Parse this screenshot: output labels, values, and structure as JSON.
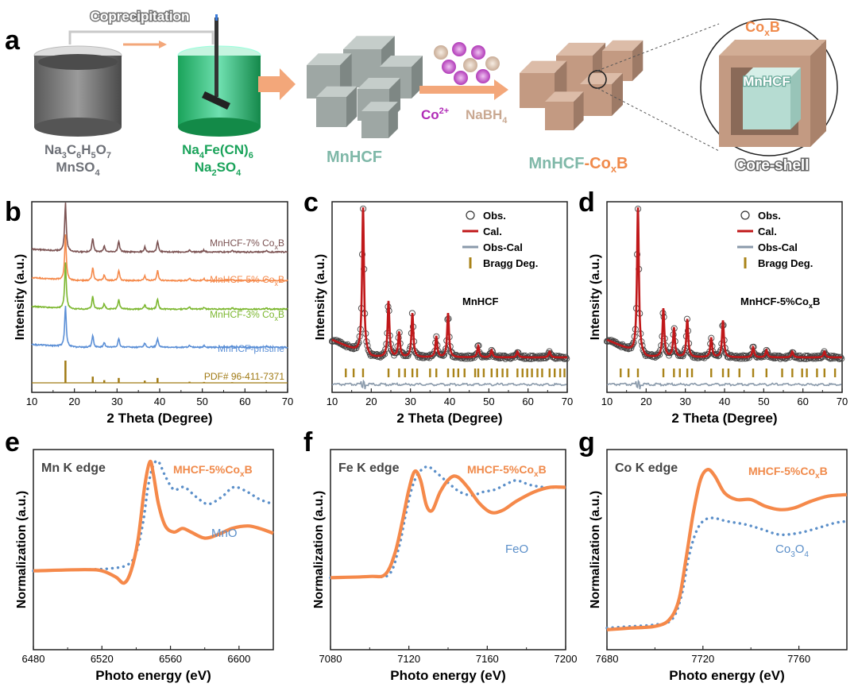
{
  "panel_labels": {
    "a": "a",
    "b": "b",
    "c": "c",
    "d": "d",
    "e": "e",
    "f": "f",
    "g": "g"
  },
  "schematic": {
    "coprecipitation": "Coprecipitation",
    "beaker1_l1_pre": "Na",
    "beaker1_l1_s1": "3",
    "beaker1_l1_m1": "C",
    "beaker1_l1_s2": "6",
    "beaker1_l1_m2": "H",
    "beaker1_l1_s3": "5",
    "beaker1_l1_m3": "O",
    "beaker1_l1_s4": "7",
    "beaker1_l2_pre": "MnSO",
    "beaker1_l2_sub": "4",
    "beaker2_l1_pre": "Na",
    "beaker2_l1_s1": "4",
    "beaker2_l1_m1": "Fe(CN)",
    "beaker2_l1_s2": "6",
    "beaker2_l2_pre": "Na",
    "beaker2_l2_s1": "2",
    "beaker2_l2_m1": "SO",
    "beaker2_l2_s2": "4",
    "mnhcf": "MnHCF",
    "co_ion": "Co",
    "co_charge": "2+",
    "nabh_pre": "NaBH",
    "nabh_sub": "4",
    "product_base": "MnHCF",
    "product_dash": "-",
    "product_co": "Co",
    "product_x": "x",
    "product_b": "B",
    "coxb_co": "Co",
    "coxb_x": "x",
    "coxb_b": "B",
    "core_label": "MnHCF",
    "core_shell": "Core-shell"
  },
  "colors": {
    "grey_text": "#6d7077",
    "green": "#1aa35a",
    "teal": "#7fb8a8",
    "orange": "#f08a4b",
    "brown": "#7b5252",
    "orange_line": "#f5894a",
    "blue_dot": "#5b8fc9",
    "red_line": "#c0181a",
    "olive": "#a07a14",
    "tick": "#a98319"
  },
  "chart_data": [
    {
      "id": "b",
      "type": "line",
      "xlabel": "2 Theta (Degree)",
      "ylabel": "Intensity (a.u.)",
      "xlim": [
        10,
        70
      ],
      "xticks": [
        10,
        20,
        30,
        40,
        50,
        60,
        70
      ],
      "series": [
        {
          "name": "MnHCF-7% Co",
          "sub": "x",
          "tail": "B",
          "color": "#7b5252",
          "offset": 4
        },
        {
          "name": "MnHCF-5% Co",
          "sub": "x",
          "tail": "B",
          "color": "#f5894a",
          "offset": 3
        },
        {
          "name": "MnHCF-3% Co",
          "sub": "x",
          "tail": "B",
          "color": "#7cb72f",
          "offset": 2
        },
        {
          "name": "MnHCF-pristine",
          "sub": "",
          "tail": "",
          "color": "#5b8fd6",
          "offset": 1
        },
        {
          "name": "PDF# 96-411-7371",
          "sub": "",
          "tail": "",
          "color": "#a07a14",
          "offset": 0
        }
      ],
      "peaks": [
        {
          "x": 17.9,
          "h": 1.0
        },
        {
          "x": 24.3,
          "h": 0.28
        },
        {
          "x": 27.0,
          "h": 0.12
        },
        {
          "x": 30.4,
          "h": 0.22
        },
        {
          "x": 36.5,
          "h": 0.1
        },
        {
          "x": 39.5,
          "h": 0.22
        },
        {
          "x": 47,
          "h": 0.05
        },
        {
          "x": 50.4,
          "h": 0.04
        },
        {
          "x": 57,
          "h": 0.03
        },
        {
          "x": 65,
          "h": 0.03
        }
      ]
    },
    {
      "id": "c",
      "type": "line",
      "xlabel": "2 Theta (Degree)",
      "ylabel": "Intensity (a.u.)",
      "sample": "MnHCF",
      "xlim": [
        10,
        70
      ],
      "xticks": [
        10,
        20,
        30,
        40,
        50,
        60,
        70
      ],
      "legend": {
        "obs": "Obs.",
        "cal": "Cal.",
        "obscal": "Obs-Cal",
        "bragg": "Bragg Deg."
      },
      "peaks": [
        {
          "x": 17.9,
          "h": 1.0
        },
        {
          "x": 24.4,
          "h": 0.38
        },
        {
          "x": 27.1,
          "h": 0.17
        },
        {
          "x": 30.5,
          "h": 0.3
        },
        {
          "x": 36.6,
          "h": 0.14
        },
        {
          "x": 39.6,
          "h": 0.3
        },
        {
          "x": 47.3,
          "h": 0.08
        },
        {
          "x": 50.7,
          "h": 0.05
        },
        {
          "x": 57.3,
          "h": 0.04
        },
        {
          "x": 65.5,
          "h": 0.04
        }
      ],
      "bragg": [
        13.5,
        15.5,
        17.9,
        24.4,
        27.1,
        28.6,
        30.5,
        31.7,
        35,
        36.6,
        39.6,
        41,
        42.2,
        43.8,
        46.5,
        47.3,
        48.7,
        50.7,
        52.1,
        53.5,
        54.7,
        57.3,
        58.6,
        59.8,
        61,
        62.4,
        63.6,
        65.5,
        66.8,
        68.2,
        69.3
      ]
    },
    {
      "id": "d",
      "type": "line",
      "xlabel": "2 Theta (Degree)",
      "ylabel": "Intensity (a.u.)",
      "sample_pre": "MnHCF-5%Co",
      "sample_sub": "x",
      "sample_tail": "B",
      "xlim": [
        10,
        70
      ],
      "xticks": [
        10,
        20,
        30,
        40,
        50,
        60,
        70
      ],
      "legend": {
        "obs": "Obs.",
        "cal": "Cal.",
        "obscal": "Obs-Cal",
        "bragg": "Bragg Deg."
      },
      "peaks": [
        {
          "x": 17.9,
          "h": 1.0
        },
        {
          "x": 24.4,
          "h": 0.33
        },
        {
          "x": 27.1,
          "h": 0.2
        },
        {
          "x": 30.5,
          "h": 0.26
        },
        {
          "x": 36.6,
          "h": 0.13
        },
        {
          "x": 39.6,
          "h": 0.25
        },
        {
          "x": 47.3,
          "h": 0.07
        },
        {
          "x": 50.7,
          "h": 0.05
        },
        {
          "x": 57.3,
          "h": 0.04
        },
        {
          "x": 65.5,
          "h": 0.04
        }
      ],
      "bragg": [
        13.5,
        15.5,
        17.9,
        24.4,
        27.1,
        28.6,
        30.5,
        31.7,
        36.6,
        39.6,
        41,
        43.8,
        47.3,
        50.7,
        54.7,
        57.3,
        59.8,
        61,
        63.6,
        65.5,
        68.2
      ]
    },
    {
      "id": "e",
      "type": "line",
      "xlabel": "Photo energy (eV)",
      "ylabel": "Normalization  (a.u.)",
      "edge": "Mn K edge",
      "sample_pre": "MHCF-5%Co",
      "sample_sub": "x",
      "sample_tail": "B",
      "ref_pre": "MnO",
      "ref_sub": "",
      "ref_tail": "",
      "xlim": [
        6480,
        6620
      ],
      "xticks": [
        6480,
        6520,
        6560,
        6600
      ],
      "sample": [
        [
          6480,
          0.05
        ],
        [
          6510,
          0.06
        ],
        [
          6520,
          0.05
        ],
        [
          6528,
          0.0
        ],
        [
          6533,
          -0.05
        ],
        [
          6537,
          0.05
        ],
        [
          6541,
          0.3
        ],
        [
          6545,
          0.75
        ],
        [
          6548,
          0.95
        ],
        [
          6550,
          0.85
        ],
        [
          6553,
          0.6
        ],
        [
          6557,
          0.42
        ],
        [
          6562,
          0.37
        ],
        [
          6567,
          0.4
        ],
        [
          6572,
          0.37
        ],
        [
          6580,
          0.32
        ],
        [
          6588,
          0.35
        ],
        [
          6596,
          0.4
        ],
        [
          6605,
          0.42
        ],
        [
          6612,
          0.4
        ],
        [
          6620,
          0.36
        ]
      ],
      "reference": [
        [
          6480,
          0.05
        ],
        [
          6510,
          0.06
        ],
        [
          6525,
          0.07
        ],
        [
          6535,
          0.1
        ],
        [
          6540,
          0.2
        ],
        [
          6544,
          0.45
        ],
        [
          6547,
          0.75
        ],
        [
          6550,
          0.92
        ],
        [
          6553,
          0.95
        ],
        [
          6557,
          0.83
        ],
        [
          6562,
          0.72
        ],
        [
          6568,
          0.74
        ],
        [
          6575,
          0.66
        ],
        [
          6582,
          0.6
        ],
        [
          6590,
          0.66
        ],
        [
          6597,
          0.74
        ],
        [
          6605,
          0.7
        ],
        [
          6612,
          0.64
        ],
        [
          6620,
          0.6
        ]
      ]
    },
    {
      "id": "f",
      "type": "line",
      "xlabel": "Photo energy (eV)",
      "ylabel": "Normalization  (a.u.)",
      "edge": "Fe K edge",
      "sample_pre": "MHCF-5%Co",
      "sample_sub": "x",
      "sample_tail": "B",
      "ref_pre": "FeO",
      "ref_sub": "",
      "ref_tail": "",
      "xlim": [
        7080,
        7200
      ],
      "xticks": [
        7080,
        7120,
        7160,
        7200
      ],
      "sample": [
        [
          7080,
          0.03
        ],
        [
          7100,
          0.04
        ],
        [
          7108,
          0.06
        ],
        [
          7113,
          0.25
        ],
        [
          7117,
          0.55
        ],
        [
          7120,
          0.8
        ],
        [
          7123,
          0.96
        ],
        [
          7126,
          0.88
        ],
        [
          7129,
          0.66
        ],
        [
          7132,
          0.62
        ],
        [
          7136,
          0.78
        ],
        [
          7141,
          0.9
        ],
        [
          7145,
          0.91
        ],
        [
          7150,
          0.82
        ],
        [
          7156,
          0.68
        ],
        [
          7162,
          0.6
        ],
        [
          7168,
          0.62
        ],
        [
          7175,
          0.7
        ],
        [
          7184,
          0.78
        ],
        [
          7192,
          0.82
        ],
        [
          7200,
          0.82
        ]
      ],
      "reference": [
        [
          7080,
          0.03
        ],
        [
          7100,
          0.04
        ],
        [
          7110,
          0.06
        ],
        [
          7115,
          0.3
        ],
        [
          7118,
          0.55
        ],
        [
          7121,
          0.78
        ],
        [
          7124,
          0.92
        ],
        [
          7127,
          0.98
        ],
        [
          7130,
          1.0
        ],
        [
          7134,
          0.95
        ],
        [
          7140,
          0.86
        ],
        [
          7146,
          0.78
        ],
        [
          7152,
          0.75
        ],
        [
          7158,
          0.78
        ],
        [
          7164,
          0.8
        ],
        [
          7170,
          0.85
        ],
        [
          7175,
          0.88
        ],
        [
          7182,
          0.84
        ],
        [
          7190,
          0.82
        ],
        [
          7200,
          0.82
        ]
      ]
    },
    {
      "id": "g",
      "type": "line",
      "xlabel": "Photo energy (eV)",
      "ylabel": "Normalization  (a.u.)",
      "edge": "Co K edge",
      "sample_pre": "MHCF-5%Co",
      "sample_sub": "x",
      "sample_tail": "B",
      "ref_pre": "Co",
      "ref_sub": "3",
      "ref_tail": "O",
      "ref_sub2": "4",
      "xlim": [
        7680,
        7780
      ],
      "xticks": [
        7680,
        7720,
        7760
      ],
      "sample": [
        [
          7680,
          0.02
        ],
        [
          7690,
          0.03
        ],
        [
          7700,
          0.04
        ],
        [
          7706,
          0.08
        ],
        [
          7710,
          0.2
        ],
        [
          7713,
          0.45
        ],
        [
          7716,
          0.72
        ],
        [
          7719,
          0.92
        ],
        [
          7722,
          0.98
        ],
        [
          7725,
          0.94
        ],
        [
          7729,
          0.84
        ],
        [
          7734,
          0.8
        ],
        [
          7740,
          0.8
        ],
        [
          7746,
          0.76
        ],
        [
          7752,
          0.74
        ],
        [
          7758,
          0.75
        ],
        [
          7765,
          0.79
        ],
        [
          7772,
          0.82
        ],
        [
          7780,
          0.83
        ]
      ],
      "reference": [
        [
          7680,
          0.03
        ],
        [
          7690,
          0.04
        ],
        [
          7700,
          0.05
        ],
        [
          7707,
          0.08
        ],
        [
          7711,
          0.22
        ],
        [
          7714,
          0.45
        ],
        [
          7717,
          0.6
        ],
        [
          7720,
          0.67
        ],
        [
          7724,
          0.69
        ],
        [
          7730,
          0.67
        ],
        [
          7738,
          0.65
        ],
        [
          7745,
          0.62
        ],
        [
          7752,
          0.59
        ],
        [
          7760,
          0.6
        ],
        [
          7768,
          0.63
        ],
        [
          7775,
          0.66
        ],
        [
          7780,
          0.67
        ]
      ]
    }
  ]
}
